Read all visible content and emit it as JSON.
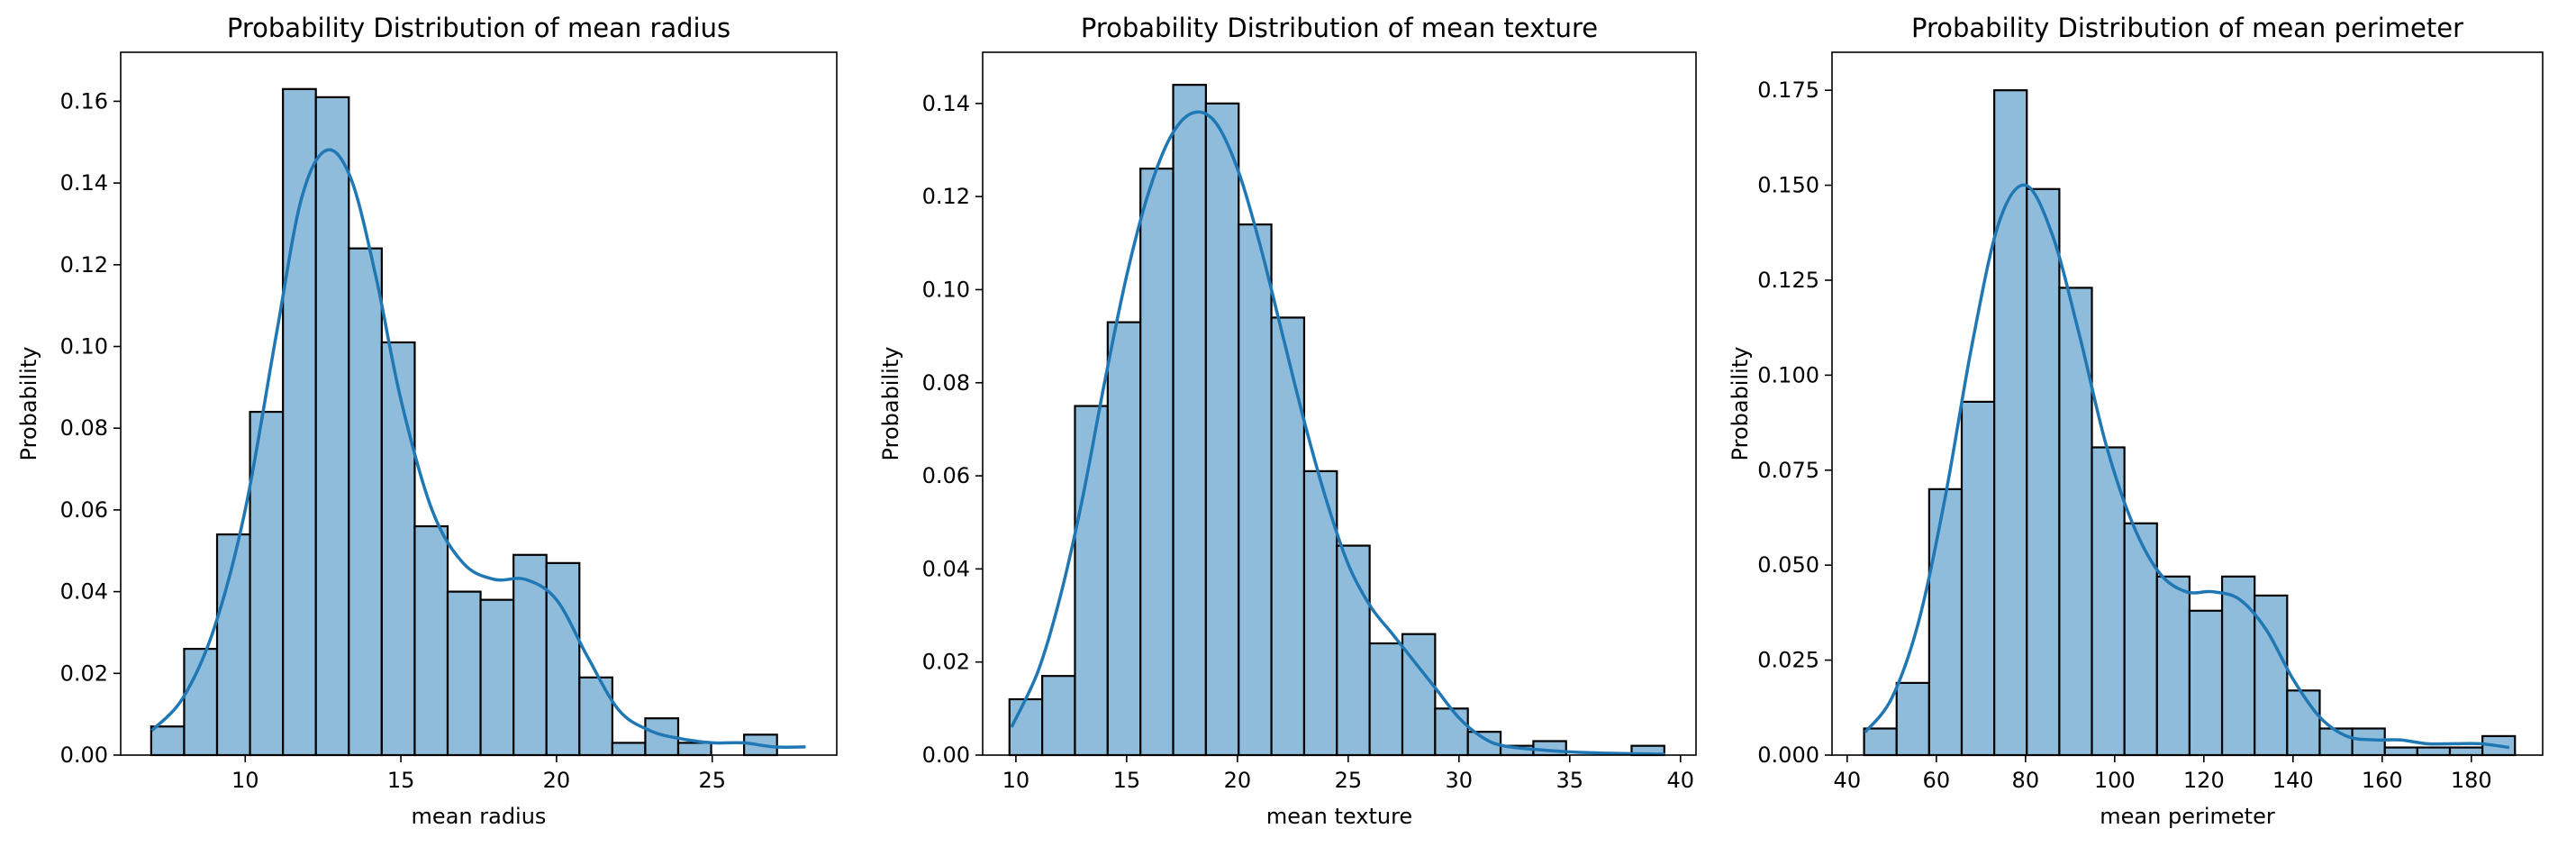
{
  "chart_data": [
    {
      "type": "bar",
      "title": "Probability Distribution of mean radius",
      "xlabel": "mean radius",
      "ylabel": "Probability",
      "xlim": [
        6.0,
        29.0
      ],
      "ylim": [
        0.0,
        0.172
      ],
      "xticks": [
        10,
        15,
        20,
        25
      ],
      "yticks": [
        0.0,
        0.02,
        0.04,
        0.06,
        0.08,
        0.1,
        0.12,
        0.14,
        0.16
      ],
      "ytick_labels": [
        "0.00",
        "0.02",
        "0.04",
        "0.06",
        "0.08",
        "0.10",
        "0.12",
        "0.14",
        "0.16"
      ],
      "bin_start": 6.98,
      "bin_width": 1.058,
      "values": [
        0.007,
        0.026,
        0.054,
        0.084,
        0.163,
        0.161,
        0.124,
        0.101,
        0.056,
        0.04,
        0.038,
        0.049,
        0.047,
        0.019,
        0.003,
        0.009,
        0.003,
        0.0,
        0.005
      ],
      "kde_x": [
        7.0,
        8.0,
        9.0,
        10.0,
        11.0,
        11.8,
        12.6,
        13.4,
        14.2,
        15.0,
        16.0,
        17.0,
        18.0,
        19.0,
        20.0,
        21.0,
        22.0,
        23.0,
        24.0,
        25.0,
        26.0,
        27.0,
        28.0
      ],
      "kde_y": [
        0.006,
        0.014,
        0.031,
        0.06,
        0.103,
        0.136,
        0.148,
        0.141,
        0.117,
        0.087,
        0.06,
        0.047,
        0.043,
        0.043,
        0.038,
        0.024,
        0.011,
        0.006,
        0.004,
        0.003,
        0.003,
        0.002,
        0.002
      ],
      "bar_color": "#8fbcdb",
      "edge_color": "#000000",
      "line_color": "#1f77b4",
      "grid": false
    },
    {
      "type": "bar",
      "title": "Probability Distribution of mean texture",
      "xlabel": "mean texture",
      "ylabel": "Probability",
      "xlim": [
        8.5,
        40.7
      ],
      "ylim": [
        0.0,
        0.151
      ],
      "xticks": [
        10,
        15,
        20,
        25,
        30,
        35,
        40
      ],
      "yticks": [
        0.0,
        0.02,
        0.04,
        0.06,
        0.08,
        0.1,
        0.12,
        0.14
      ],
      "ytick_labels": [
        "0.00",
        "0.02",
        "0.04",
        "0.06",
        "0.08",
        "0.10",
        "0.12",
        "0.14"
      ],
      "bin_start": 9.71,
      "bin_width": 1.478,
      "values": [
        0.012,
        0.017,
        0.075,
        0.093,
        0.126,
        0.144,
        0.14,
        0.114,
        0.094,
        0.061,
        0.045,
        0.024,
        0.026,
        0.01,
        0.005,
        0.002,
        0.003,
        0.0,
        0.0,
        0.002
      ],
      "kde_x": [
        9.8,
        11.0,
        12.0,
        13.0,
        14.0,
        15.0,
        16.0,
        17.0,
        18.0,
        19.0,
        20.0,
        21.0,
        22.0,
        23.0,
        24.0,
        25.0,
        26.0,
        27.0,
        28.0,
        29.0,
        30.0,
        31.0,
        32.0,
        34.0,
        36.0,
        39.3
      ],
      "kde_y": [
        0.006,
        0.018,
        0.034,
        0.055,
        0.08,
        0.103,
        0.121,
        0.133,
        0.138,
        0.136,
        0.126,
        0.11,
        0.091,
        0.072,
        0.055,
        0.041,
        0.032,
        0.026,
        0.02,
        0.014,
        0.008,
        0.004,
        0.002,
        0.001,
        0.0005,
        0.0002
      ],
      "bar_color": "#8fbcdb",
      "edge_color": "#000000",
      "line_color": "#1f77b4",
      "grid": false
    },
    {
      "type": "bar",
      "title": "Probability Distribution of mean perimeter",
      "xlabel": "mean perimeter",
      "ylabel": "Probability",
      "xlim": [
        36.6,
        196.0
      ],
      "ylim": [
        0.0,
        0.185
      ],
      "xticks": [
        40,
        60,
        80,
        100,
        120,
        140,
        160,
        180
      ],
      "yticks": [
        0.0,
        0.025,
        0.05,
        0.075,
        0.1,
        0.125,
        0.15,
        0.175
      ],
      "ytick_labels": [
        "0.000",
        "0.025",
        "0.050",
        "0.075",
        "0.100",
        "0.125",
        "0.150",
        "0.175"
      ],
      "bin_start": 43.79,
      "bin_width": 7.3,
      "values": [
        0.007,
        0.019,
        0.07,
        0.093,
        0.175,
        0.149,
        0.123,
        0.081,
        0.061,
        0.047,
        0.038,
        0.047,
        0.042,
        0.017,
        0.007,
        0.007,
        0.002,
        0.002,
        0.002,
        0.005
      ],
      "kde_x": [
        44,
        50,
        56,
        62,
        68,
        74,
        80,
        86,
        92,
        98,
        104,
        110,
        116,
        122,
        128,
        134,
        140,
        146,
        152,
        158,
        164,
        170,
        176,
        182,
        188.5
      ],
      "kde_y": [
        0.006,
        0.015,
        0.035,
        0.068,
        0.108,
        0.14,
        0.15,
        0.137,
        0.111,
        0.082,
        0.061,
        0.048,
        0.043,
        0.043,
        0.041,
        0.033,
        0.02,
        0.01,
        0.005,
        0.004,
        0.004,
        0.003,
        0.003,
        0.003,
        0.002
      ],
      "bar_color": "#8fbcdb",
      "edge_color": "#000000",
      "line_color": "#1f77b4",
      "grid": false
    }
  ]
}
